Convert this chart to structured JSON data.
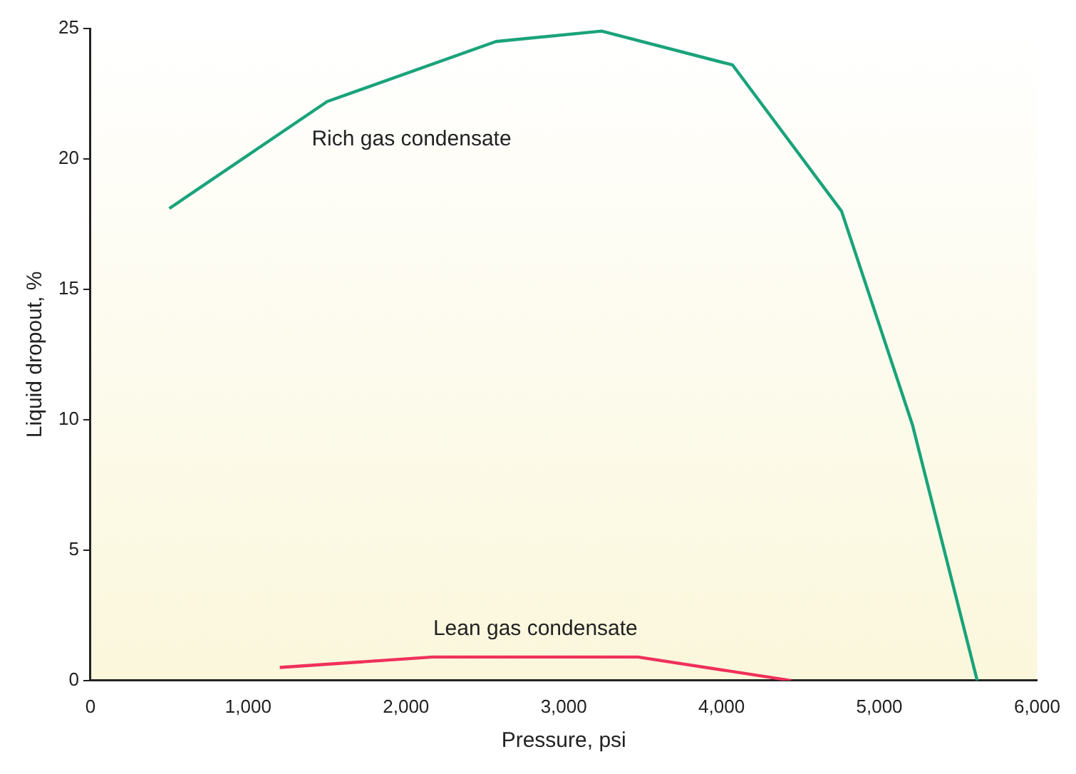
{
  "chart_data": {
    "type": "line",
    "xlabel": "Pressure, psi",
    "ylabel": "Liquid dropout, %",
    "xlim": [
      0,
      6000
    ],
    "xticks": [
      0,
      {
        "value": 1000,
        "label": "1,000"
      },
      {
        "value": 2000,
        "label": "2,000"
      },
      {
        "value": 3000,
        "label": "3,000"
      },
      {
        "value": 4000,
        "label": "4,000"
      },
      {
        "value": 5000,
        "label": "5,000"
      },
      {
        "value": 6000,
        "label": "6,000"
      }
    ],
    "ylim": [
      0,
      25
    ],
    "yticks": [
      0,
      5,
      10,
      15,
      20,
      25
    ],
    "grid": false,
    "legend": false,
    "marker": "none",
    "line_style": "solid",
    "series": [
      {
        "name": "Rich gas condensate",
        "color": "#1aa37a",
        "x": [
          500,
          1500,
          2570,
          3240,
          4070,
          4760,
          5210,
          5620
        ],
        "values": [
          18.1,
          22.2,
          24.5,
          24.9,
          23.6,
          18.0,
          9.8,
          0
        ]
      },
      {
        "name": "Lean gas condensate",
        "color": "#f0305a",
        "x": [
          1200,
          2170,
          3470,
          4440
        ],
        "values": [
          0.5,
          0.9,
          0.9,
          0
        ]
      }
    ]
  }
}
